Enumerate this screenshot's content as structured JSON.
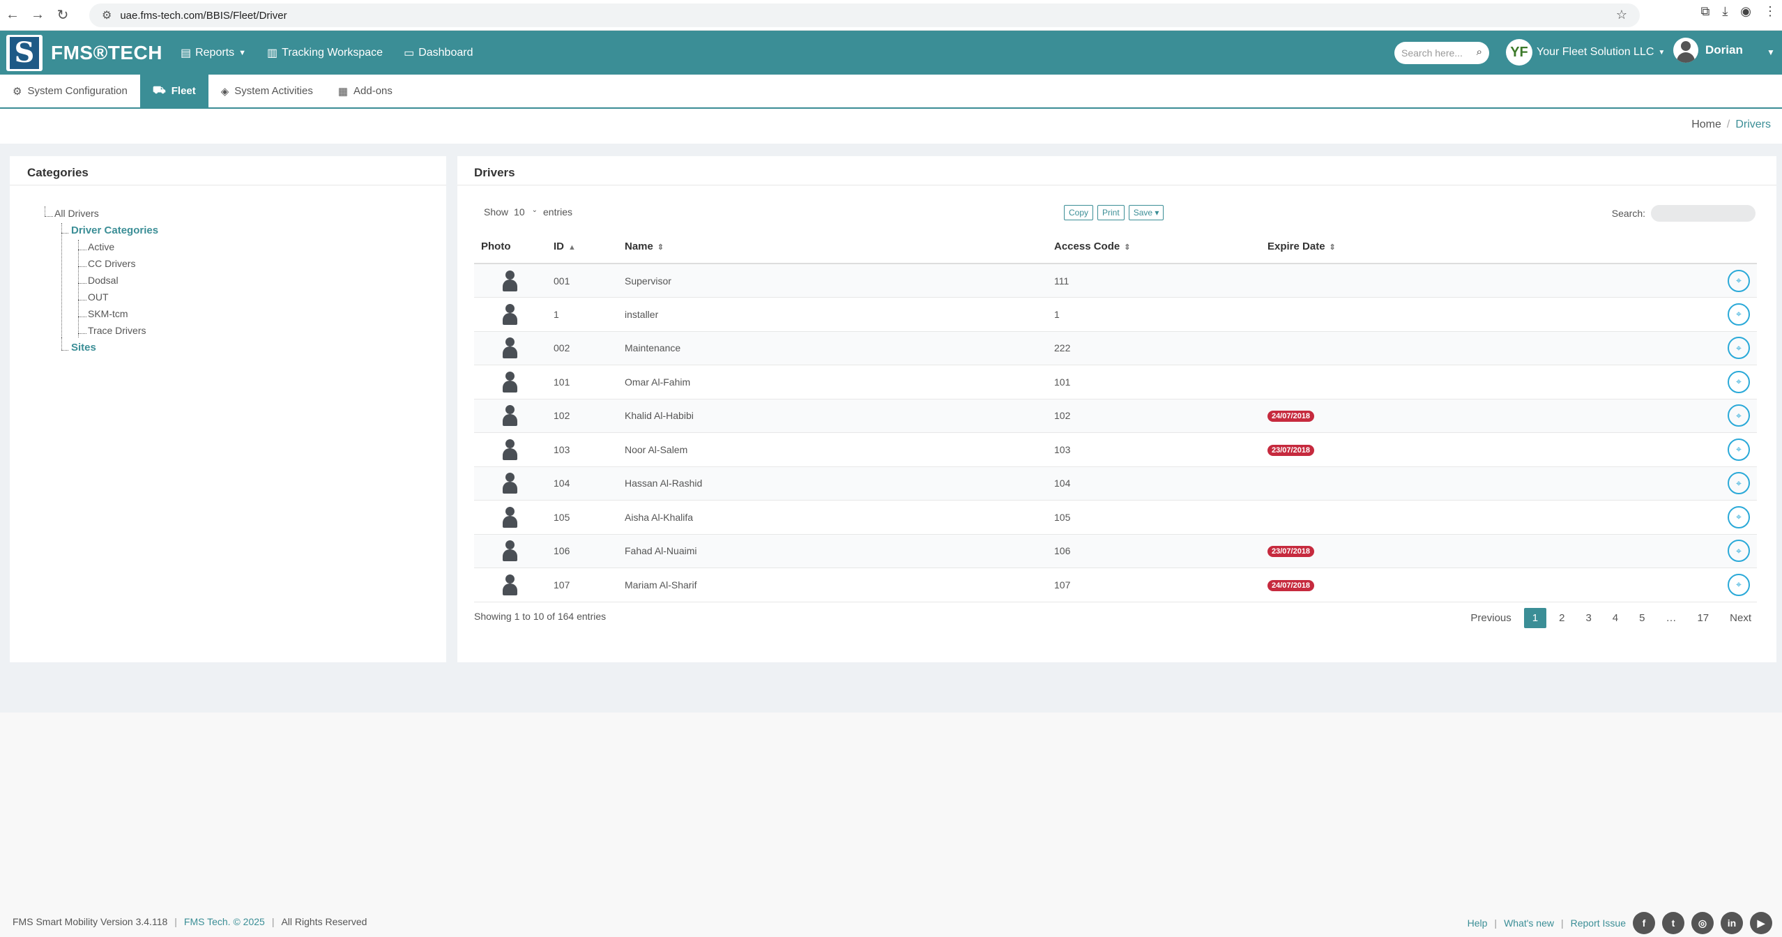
{
  "browser": {
    "url": "uae.fms-tech.com/BBIS/Fleet/Driver",
    "back_icon": "←",
    "forward_icon": "→",
    "reload_icon": "↻"
  },
  "header": {
    "logo_text": "FMS®TECH",
    "nav": [
      {
        "label": "Reports",
        "icon": "report-icon"
      },
      {
        "label": "Tracking Workspace",
        "icon": "map-icon"
      },
      {
        "label": "Dashboard",
        "icon": "monitor-icon"
      }
    ],
    "search_placeholder": "Search here...",
    "company": "Your Fleet Solution LLC",
    "company_badge": "YF",
    "user": "Dorian"
  },
  "subnav": {
    "tabs": [
      {
        "label": "System Configuration"
      },
      {
        "label": "Fleet",
        "active": true
      },
      {
        "label": "System Activities"
      },
      {
        "label": "Add-ons"
      }
    ]
  },
  "breadcrumb": {
    "home": "Home",
    "current": "Drivers"
  },
  "categories": {
    "title": "Categories",
    "root": "All Drivers",
    "group": "Driver Categories",
    "children": [
      "Active",
      "CC Drivers",
      "Dodsal",
      "OUT",
      "SKM-tcm",
      "Trace Drivers"
    ],
    "sites": "Sites"
  },
  "drivers": {
    "title": "Drivers",
    "show_label": "Show",
    "entries_value": "10",
    "entries_label": "entries",
    "buttons": {
      "copy": "Copy",
      "print": "Print",
      "save": "Save"
    },
    "search_label": "Search:",
    "columns": {
      "photo": "Photo",
      "id": "ID",
      "name": "Name",
      "access": "Access Code",
      "expire": "Expire Date"
    },
    "rows": [
      {
        "id": "001",
        "name": "Supervisor",
        "access": "111",
        "expire": ""
      },
      {
        "id": "1",
        "name": "installer",
        "access": "1",
        "expire": ""
      },
      {
        "id": "002",
        "name": "Maintenance",
        "access": "222",
        "expire": ""
      },
      {
        "id": "101",
        "name": "Omar Al-Fahim",
        "access": "101",
        "expire": ""
      },
      {
        "id": "102",
        "name": "Khalid Al-Habibi",
        "access": "102",
        "expire": "24/07/2018"
      },
      {
        "id": "103",
        "name": "Noor Al-Salem",
        "access": "103",
        "expire": "23/07/2018"
      },
      {
        "id": "104",
        "name": "Hassan Al-Rashid",
        "access": "104",
        "expire": ""
      },
      {
        "id": "105",
        "name": "Aisha Al-Khalifa",
        "access": "105",
        "expire": ""
      },
      {
        "id": "106",
        "name": "Fahad Al-Nuaimi",
        "access": "106",
        "expire": "23/07/2018"
      },
      {
        "id": "107",
        "name": "Mariam Al-Sharif",
        "access": "107",
        "expire": "24/07/2018"
      }
    ],
    "info": "Showing 1 to 10 of 164 entries",
    "pager": {
      "previous": "Previous",
      "pages": [
        "1",
        "2",
        "3",
        "4",
        "5",
        "…",
        "17"
      ],
      "next": "Next",
      "current": "1"
    }
  },
  "footer": {
    "version": "FMS Smart Mobility Version 3.4.118",
    "brand": "FMS Tech. © 2025",
    "rights": "All Rights Reserved",
    "links": [
      "Help",
      "What's new",
      "Report Issue"
    ],
    "social": [
      "f",
      "t",
      "◎",
      "in",
      "▶"
    ]
  },
  "colors": {
    "accent": "#3b8e96",
    "expire_badge": "#c62a3e",
    "action_icon": "#2aa9d8"
  }
}
